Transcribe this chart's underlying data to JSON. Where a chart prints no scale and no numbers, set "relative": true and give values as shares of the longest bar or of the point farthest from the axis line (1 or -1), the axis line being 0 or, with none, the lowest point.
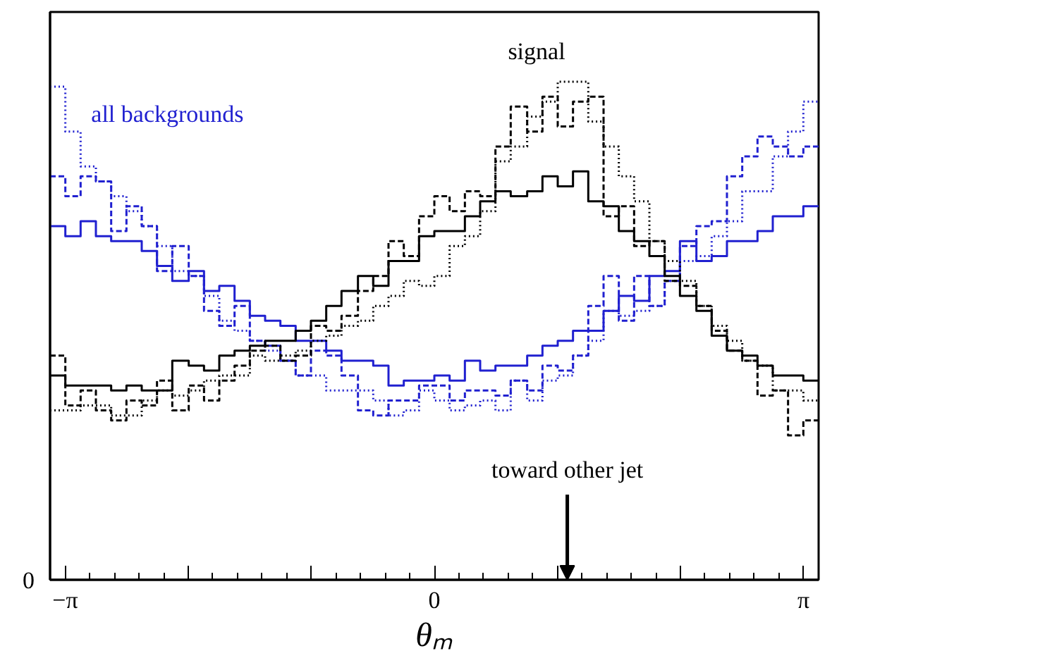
{
  "chart_data": {
    "type": "step",
    "relative": true,
    "xlabel": "θₘ",
    "x": [
      -3.27,
      -3.14,
      -3.01,
      -2.88,
      -2.75,
      -2.62,
      -2.49,
      -2.36,
      -2.23,
      -2.09,
      -1.96,
      -1.83,
      -1.7,
      -1.57,
      -1.44,
      -1.31,
      -1.18,
      -1.05,
      -0.92,
      -0.79,
      -0.65,
      -0.52,
      -0.39,
      -0.26,
      -0.13,
      0,
      0.13,
      0.26,
      0.39,
      0.52,
      0.65,
      0.79,
      0.92,
      1.05,
      1.18,
      1.31,
      1.44,
      1.57,
      1.7,
      1.83,
      1.96,
      2.09,
      2.23,
      2.36,
      2.49,
      2.62,
      2.75,
      2.88,
      3.01,
      3.14,
      3.27
    ],
    "xlim": [
      -3.27,
      3.27
    ],
    "xticks": [
      {
        "value": -3.1416,
        "label": "−π"
      },
      {
        "value": -2.0944,
        "label": null
      },
      {
        "value": -1.0472,
        "label": null
      },
      0,
      {
        "value": 1.0472,
        "label": null
      },
      {
        "value": 2.0944,
        "label": null
      },
      {
        "value": 3.1416,
        "label": "π"
      }
    ],
    "series": [
      {
        "color": "#2020d0",
        "line_style": "dotted",
        "values": [
          0.99,
          0.9,
          0.83,
          0.8,
          0.77,
          0.74,
          0.71,
          0.67,
          0.62,
          0.61,
          0.57,
          0.52,
          0.5,
          0.48,
          0.46,
          0.44,
          0.41,
          0.41,
          0.38,
          0.38,
          0.38,
          0.36,
          0.33,
          0.34,
          0.38,
          0.36,
          0.34,
          0.35,
          0.36,
          0.34,
          0.4,
          0.36,
          0.4,
          0.41,
          0.45,
          0.48,
          0.54,
          0.53,
          0.54,
          0.55,
          0.6,
          0.64,
          0.65,
          0.69,
          0.72,
          0.78,
          0.78,
          0.85,
          0.9,
          0.96,
          0.96
        ]
      },
      {
        "color": "#2020d0",
        "line_style": "dashed",
        "values": [
          0.81,
          0.77,
          0.81,
          0.8,
          0.7,
          0.75,
          0.71,
          0.62,
          0.67,
          0.61,
          0.54,
          0.51,
          0.55,
          0.48,
          0.47,
          0.44,
          0.41,
          0.46,
          0.45,
          0.41,
          0.34,
          0.33,
          0.36,
          0.36,
          0.39,
          0.39,
          0.36,
          0.38,
          0.38,
          0.37,
          0.4,
          0.38,
          0.43,
          0.42,
          0.45,
          0.55,
          0.61,
          0.52,
          0.61,
          0.55,
          0.6,
          0.67,
          0.71,
          0.72,
          0.81,
          0.85,
          0.89,
          0.87,
          0.85,
          0.87,
          0.87
        ]
      },
      {
        "color": "#2020d0",
        "line_style": "solid",
        "values": [
          0.71,
          0.69,
          0.72,
          0.69,
          0.68,
          0.68,
          0.66,
          0.63,
          0.6,
          0.62,
          0.58,
          0.59,
          0.56,
          0.53,
          0.52,
          0.51,
          0.48,
          0.48,
          0.46,
          0.44,
          0.44,
          0.43,
          0.39,
          0.4,
          0.4,
          0.41,
          0.4,
          0.44,
          0.42,
          0.43,
          0.43,
          0.45,
          0.47,
          0.48,
          0.5,
          0.5,
          0.54,
          0.57,
          0.56,
          0.61,
          0.62,
          0.68,
          0.64,
          0.65,
          0.68,
          0.68,
          0.7,
          0.73,
          0.73,
          0.75,
          0.75
        ]
      },
      {
        "color": "#000000",
        "line_style": "dotted",
        "values": [
          0.34,
          0.34,
          0.35,
          0.35,
          0.33,
          0.33,
          0.36,
          0.38,
          0.37,
          0.38,
          0.4,
          0.41,
          0.41,
          0.45,
          0.44,
          0.45,
          0.46,
          0.48,
          0.49,
          0.51,
          0.52,
          0.55,
          0.57,
          0.6,
          0.59,
          0.61,
          0.67,
          0.69,
          0.74,
          0.84,
          0.87,
          0.93,
          0.96,
          1.0,
          1.0,
          0.92,
          0.87,
          0.81,
          0.76,
          0.68,
          0.64,
          0.6,
          0.55,
          0.51,
          0.48,
          0.44,
          0.43,
          0.38,
          0.38,
          0.36,
          0.36
        ]
      },
      {
        "color": "#000000",
        "line_style": "dashed",
        "values": [
          0.45,
          0.35,
          0.38,
          0.34,
          0.32,
          0.36,
          0.35,
          0.4,
          0.34,
          0.39,
          0.36,
          0.4,
          0.43,
          0.46,
          0.47,
          0.44,
          0.45,
          0.51,
          0.5,
          0.53,
          0.58,
          0.61,
          0.68,
          0.65,
          0.73,
          0.77,
          0.74,
          0.78,
          0.77,
          0.87,
          0.95,
          0.9,
          0.97,
          0.91,
          0.96,
          0.97,
          0.73,
          0.75,
          0.67,
          0.68,
          0.6,
          0.59,
          0.55,
          0.5,
          0.46,
          0.44,
          0.37,
          0.38,
          0.29,
          0.32,
          0.32
        ]
      },
      {
        "color": "#000000",
        "line_style": "solid",
        "values": [
          0.41,
          0.39,
          0.39,
          0.39,
          0.38,
          0.39,
          0.38,
          0.38,
          0.44,
          0.43,
          0.42,
          0.45,
          0.46,
          0.47,
          0.48,
          0.48,
          0.5,
          0.52,
          0.55,
          0.58,
          0.61,
          0.59,
          0.64,
          0.64,
          0.69,
          0.7,
          0.7,
          0.73,
          0.76,
          0.78,
          0.77,
          0.78,
          0.81,
          0.79,
          0.82,
          0.76,
          0.75,
          0.7,
          0.68,
          0.65,
          0.61,
          0.57,
          0.54,
          0.49,
          0.46,
          0.45,
          0.43,
          0.41,
          0.41,
          0.4,
          0.4
        ]
      }
    ],
    "annotations": [
      "signal",
      "all backgrounds",
      "toward other jet",
      "0"
    ]
  }
}
